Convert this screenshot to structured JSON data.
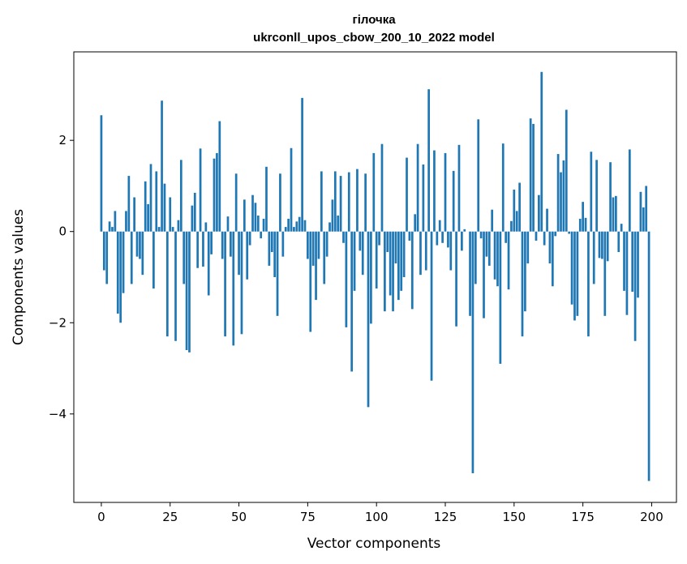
{
  "chart_data": {
    "type": "bar",
    "title": "гілочка",
    "subtitle": "ukrconll_upos_cbow_200_10_2022 model",
    "xlabel": "Vector components",
    "ylabel": "Components values",
    "xlim": [
      -10,
      209
    ],
    "ylim": [
      -5.94,
      3.94
    ],
    "xticks": [
      0,
      25,
      50,
      75,
      100,
      125,
      150,
      175,
      200
    ],
    "yticks": [
      2,
      0,
      -2,
      -4
    ],
    "ytick_labels": [
      "2",
      "0",
      "−2",
      "−4"
    ],
    "grid": false,
    "legend": "none",
    "bar_color": "#1f77b4",
    "values": [
      2.55,
      -0.85,
      -1.15,
      0.22,
      0.1,
      0.45,
      -1.8,
      -2.0,
      -1.35,
      0.45,
      1.22,
      -1.15,
      0.75,
      -0.55,
      -0.6,
      -0.95,
      1.1,
      0.6,
      1.48,
      -1.25,
      1.32,
      0.1,
      2.87,
      1.05,
      -2.3,
      0.75,
      0.1,
      -2.4,
      0.25,
      1.57,
      -1.15,
      -2.6,
      -2.65,
      0.57,
      0.85,
      -0.8,
      1.82,
      -0.77,
      0.2,
      -1.4,
      -0.5,
      1.6,
      1.72,
      2.42,
      -0.6,
      -2.3,
      0.33,
      -0.55,
      -2.5,
      1.27,
      -0.95,
      -2.25,
      0.7,
      -1.05,
      -0.3,
      0.8,
      0.63,
      0.35,
      -0.15,
      0.28,
      1.42,
      -0.75,
      -0.45,
      -1.0,
      -1.85,
      1.27,
      -0.55,
      0.1,
      0.28,
      1.83,
      0.1,
      0.22,
      0.32,
      2.93,
      0.25,
      -0.6,
      -2.2,
      -0.75,
      -1.5,
      -0.6,
      1.32,
      -1.15,
      -0.55,
      0.2,
      0.7,
      1.32,
      0.35,
      1.22,
      -0.25,
      -2.1,
      1.3,
      -3.07,
      -1.3,
      1.37,
      -0.42,
      -0.95,
      1.27,
      -3.85,
      -2.02,
      1.72,
      -1.25,
      -0.3,
      1.92,
      -1.75,
      -0.45,
      -1.4,
      -1.75,
      -0.7,
      -1.5,
      -1.3,
      -1.0,
      1.62,
      -0.2,
      -1.7,
      0.38,
      1.92,
      -0.95,
      1.47,
      -0.85,
      3.12,
      -3.27,
      1.78,
      -0.3,
      0.25,
      -0.25,
      1.72,
      -0.35,
      -0.85,
      1.33,
      -2.08,
      1.9,
      -0.42,
      0.05,
      0.0,
      -1.85,
      -5.3,
      -1.15,
      2.46,
      -0.15,
      -1.9,
      -0.55,
      -0.75,
      0.48,
      -1.05,
      -1.2,
      -2.9,
      1.93,
      -0.25,
      -1.27,
      0.23,
      0.92,
      0.45,
      1.07,
      -2.3,
      -1.75,
      -0.7,
      2.48,
      2.36,
      -0.2,
      0.8,
      3.5,
      -0.3,
      0.5,
      -0.7,
      -1.2,
      -0.1,
      1.7,
      1.3,
      1.56,
      2.67,
      -0.05,
      -1.6,
      -1.95,
      -1.85,
      0.28,
      0.65,
      0.3,
      -2.3,
      1.75,
      -1.15,
      1.57,
      -0.58,
      -0.6,
      -1.85,
      -0.65,
      1.52,
      0.75,
      0.78,
      -0.45,
      0.17,
      -1.3,
      -1.83,
      1.8,
      -1.32,
      -2.4,
      -1.45,
      0.87,
      0.53,
      1.0,
      -5.47
    ]
  }
}
